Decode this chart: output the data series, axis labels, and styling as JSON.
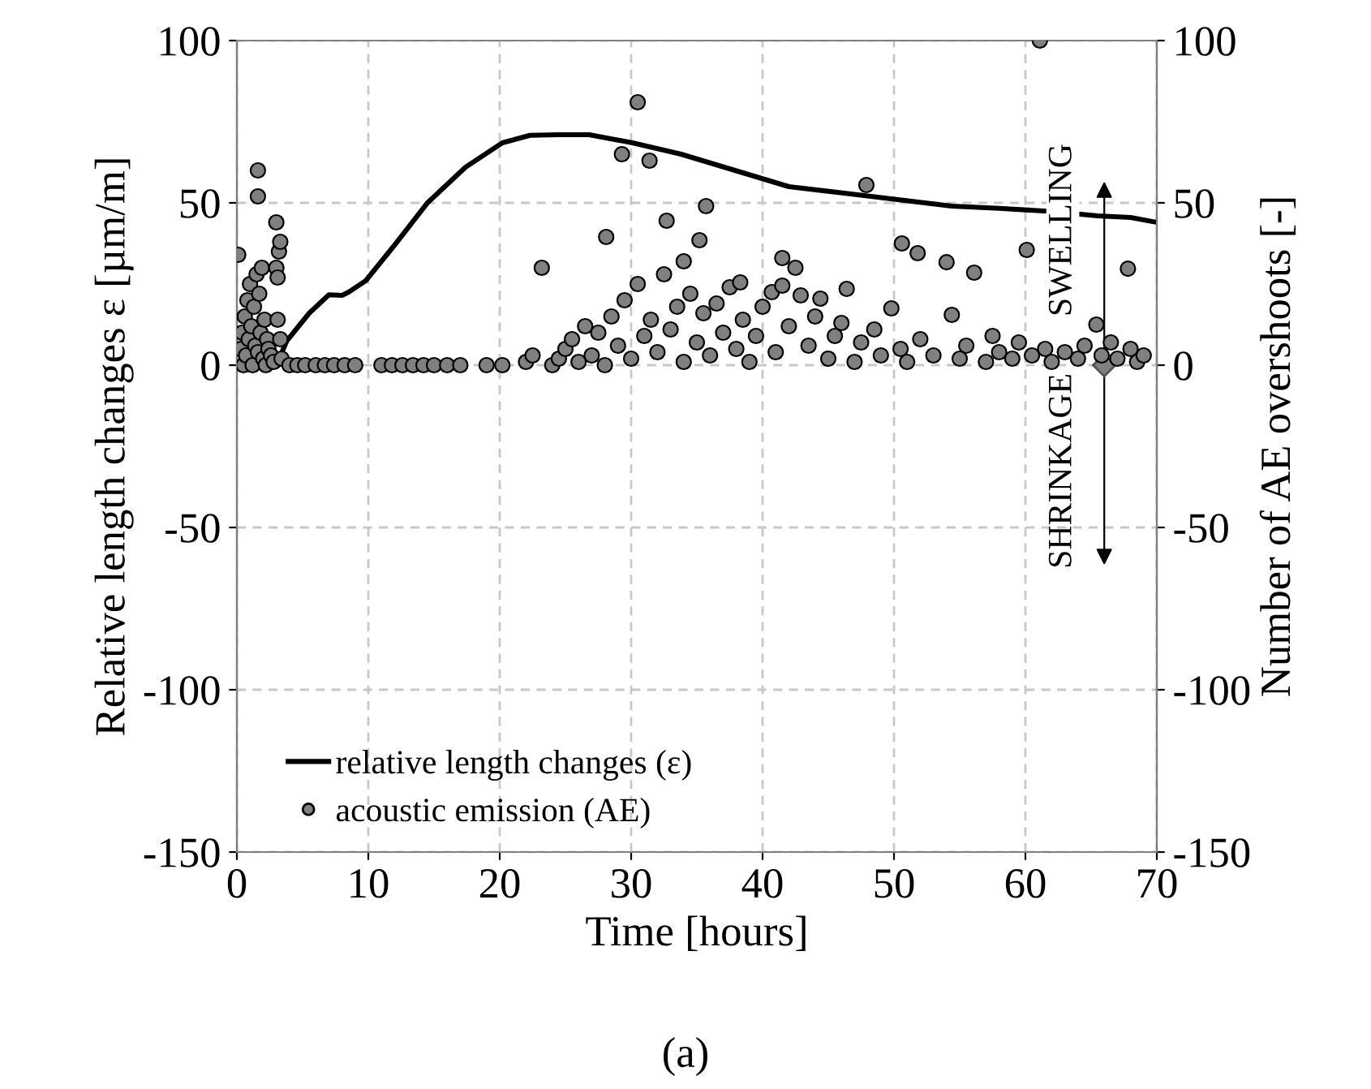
{
  "chart_data": {
    "type": "line",
    "xlabel": "Time [hours]",
    "ylabel": "Relative length changes ε [µm/m]",
    "y2label": "Number of AE overshoots [-]",
    "xlim": [
      0,
      70
    ],
    "xticks": [
      0,
      10,
      20,
      30,
      40,
      50,
      60,
      70
    ],
    "ylim": [
      -150,
      100
    ],
    "yticks": [
      -150,
      -100,
      -50,
      0,
      50,
      100
    ],
    "y2lim": [
      -150,
      100
    ],
    "y2ticks": [
      -150,
      -100,
      -50,
      0,
      50,
      100
    ],
    "grid": true,
    "legend": "bottom left",
    "annotations": [
      "SWELLING",
      "SHRINKAGE",
      "(a)"
    ],
    "series": [
      {
        "name": "relative length changes (ε)",
        "color": "#000000",
        "marker": "none",
        "line_style": "solid",
        "x": [
          3.0,
          3.8,
          5.5,
          7.0,
          8.0,
          8.5,
          9.8,
          12,
          14.5,
          17.4,
          20.2,
          22.3,
          24.5,
          26.8,
          30.1,
          33.8,
          37.9,
          42,
          46.2,
          50.3,
          54.4,
          58,
          61.4,
          62.5,
          64.2,
          65.5,
          68,
          70
        ],
        "values": [
          0,
          7.5,
          16,
          21.7,
          21.5,
          22.5,
          26,
          37,
          50,
          61,
          68.5,
          70.8,
          71,
          71,
          68.5,
          65,
          60,
          55,
          53,
          51,
          49,
          48.3,
          47.5,
          null,
          46.5,
          46,
          45.5,
          44
        ]
      },
      {
        "name": "acoustic emission (AE)",
        "type": "scatter",
        "axis": "y2",
        "color": "#808080",
        "marker": "circle",
        "x": [
          0.3,
          0.4,
          0.5,
          0.6,
          0.7,
          0.8,
          0.9,
          1.0,
          1.1,
          1.2,
          1.3,
          1.4,
          1.5,
          1.6,
          1.7,
          1.8,
          1.9,
          2.0,
          2.1,
          2.2,
          2.3,
          2.4,
          2.6,
          2.8,
          3.0,
          3.1,
          3.2,
          3.3,
          3.1,
          3.3,
          3.4,
          0.1,
          1.6,
          1.6,
          3.0,
          4.0,
          4.6,
          5.2,
          6.0,
          6.7,
          7.4,
          8.2,
          9.0,
          11.0,
          11.8,
          12.6,
          13.4,
          14.2,
          15.0,
          16.0,
          17.0,
          19.0,
          20.2,
          22.0,
          22.5,
          23.2,
          24,
          24.5,
          25,
          25.5,
          26,
          26.5,
          27,
          27.5,
          28,
          28.1,
          28.5,
          29,
          29.3,
          29.5,
          30,
          30.5,
          30.5,
          31,
          31.4,
          31.5,
          32,
          32.5,
          32.7,
          33,
          33.5,
          34,
          34,
          34.5,
          35,
          35.2,
          35.5,
          35.7,
          36,
          36.5,
          37,
          37.5,
          38,
          38.3,
          38.5,
          39,
          39.5,
          40,
          40.7,
          41,
          41.5,
          41.5,
          42,
          42.5,
          42.9,
          43.5,
          44,
          44.4,
          45,
          45.5,
          46,
          46.4,
          47,
          47.5,
          47.9,
          48.5,
          49,
          49.8,
          50.5,
          50.6,
          51,
          51.8,
          52,
          53,
          54,
          54.4,
          55,
          55.5,
          56.1,
          57,
          57.5,
          58,
          59,
          59.5,
          60.1,
          60.5,
          61.1,
          61.5,
          62,
          63,
          64,
          64.5,
          65.4,
          65.8,
          66.5,
          67,
          67.8,
          68,
          68.5,
          69
        ],
        "values": [
          5,
          10,
          0,
          15,
          3,
          20,
          8,
          25,
          12,
          0,
          18,
          6,
          28,
          4,
          22,
          10,
          30,
          2,
          14,
          0,
          8,
          5,
          3,
          1,
          30,
          27,
          35,
          38,
          14,
          8,
          2,
          34,
          60,
          52,
          44,
          0,
          0,
          0,
          0,
          0,
          0,
          0,
          0,
          0,
          0,
          0,
          0,
          0,
          0,
          0,
          0,
          0,
          0,
          1,
          3,
          30,
          0,
          2,
          5,
          8,
          1,
          12,
          3,
          10,
          0,
          39.5,
          15,
          6,
          65,
          20,
          2,
          81,
          25,
          9,
          63,
          14,
          4,
          28,
          44.5,
          11,
          18,
          32,
          1,
          22,
          7,
          38.5,
          16,
          49,
          3,
          19,
          10,
          24,
          5,
          25.5,
          14,
          1,
          9,
          18,
          22.5,
          4,
          33,
          24.5,
          12,
          30,
          21.5,
          6,
          15,
          20.5,
          2,
          9,
          13,
          23.5,
          1,
          7,
          55.5,
          11,
          3,
          17.5,
          5,
          37.5,
          1,
          34.5,
          8,
          3,
          31.7,
          15.5,
          2,
          6,
          28.5,
          1,
          9,
          4,
          2,
          7,
          35.5,
          3,
          100,
          5,
          1,
          4,
          2,
          6,
          12.5,
          3,
          7,
          2,
          29.7,
          5,
          1,
          3
        ]
      }
    ]
  }
}
